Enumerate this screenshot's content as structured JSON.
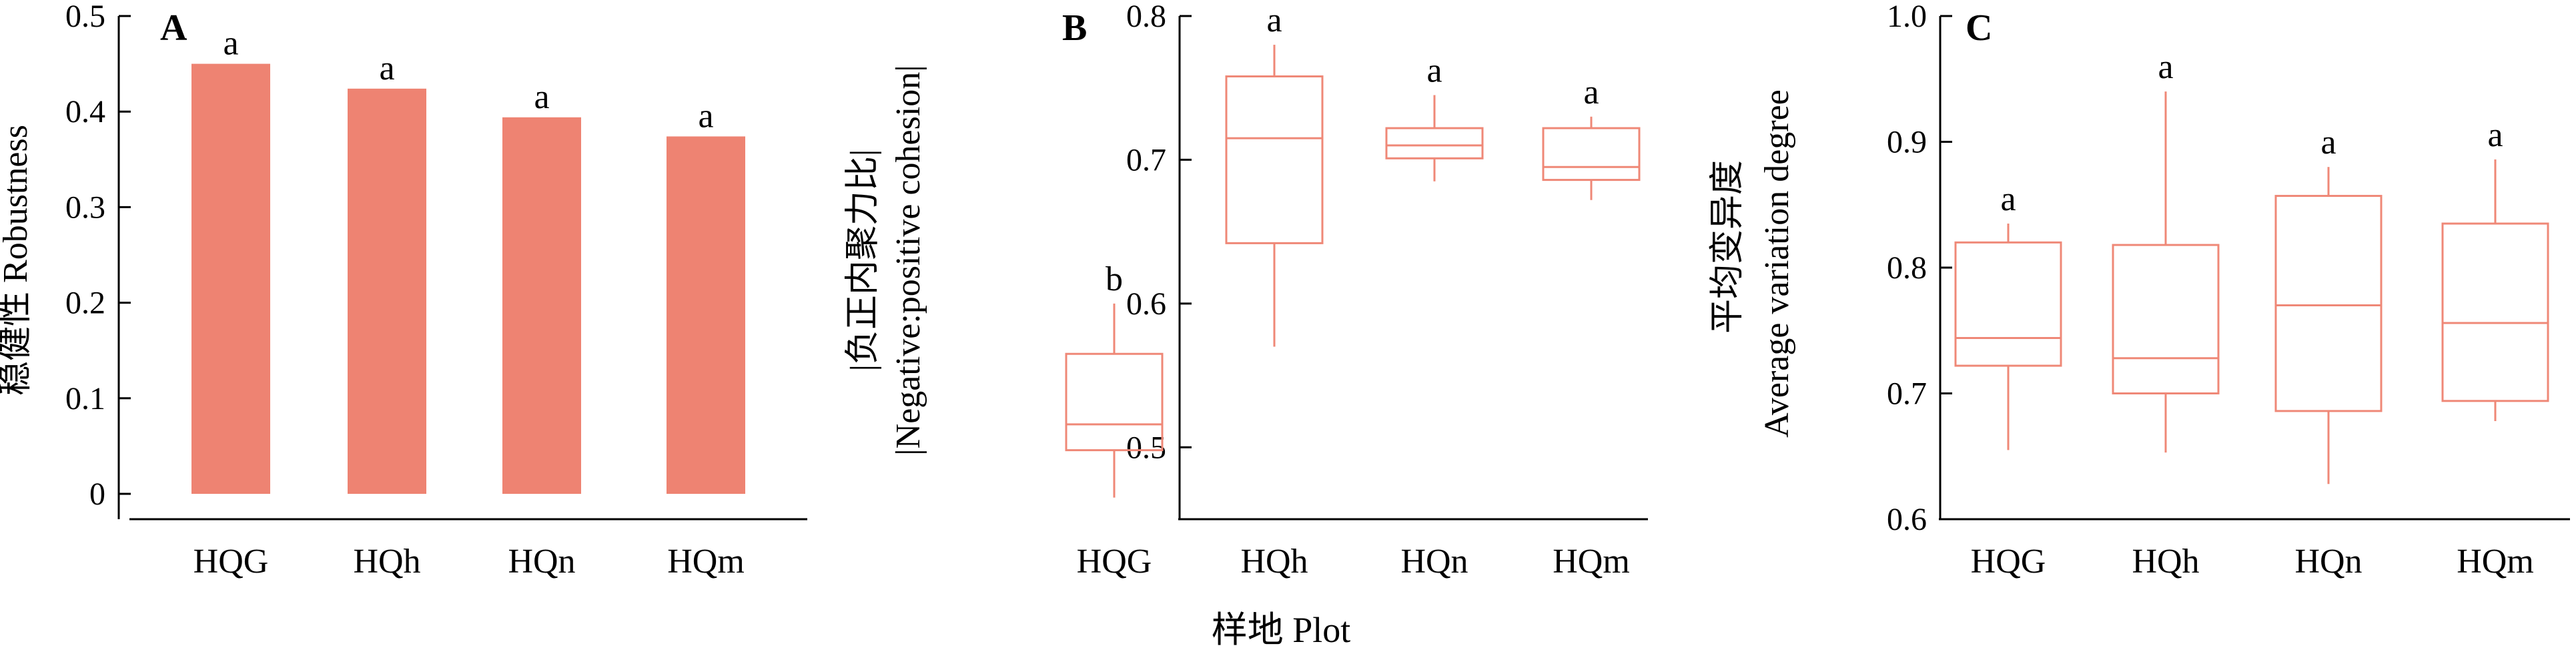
{
  "colors": {
    "bar": "#ee8372",
    "box": "#ef8877",
    "axis": "#000000"
  },
  "x_axis_title": "样地 Plot",
  "chart_data": [
    {
      "type": "bar",
      "panel": "A",
      "ylabel": "稳健性 Robustness",
      "ylim": [
        0,
        0.5
      ],
      "yticks": [
        0,
        0.1,
        0.2,
        0.3,
        0.4,
        0.5
      ],
      "ytick_labels": [
        "0",
        "0.1",
        "0.2",
        "0.3",
        "0.4",
        "0.5"
      ],
      "categories": [
        "HQG",
        "HQh",
        "HQn",
        "HQm"
      ],
      "values": [
        0.45,
        0.424,
        0.394,
        0.374
      ],
      "significance": [
        "a",
        "a",
        "a",
        "a"
      ]
    },
    {
      "type": "box",
      "panel": "B",
      "ylabel": "|负正内聚力比|",
      "ylabel2": "|Negative:positive cohesion|",
      "ylim": [
        0.45,
        0.8
      ],
      "yticks": [
        0.5,
        0.6,
        0.7,
        0.8
      ],
      "ytick_labels": [
        "0.5",
        "0.6",
        "0.7",
        "0.8"
      ],
      "categories": [
        "HQG",
        "HQh",
        "HQn",
        "HQm"
      ],
      "boxes": [
        {
          "min": 0.465,
          "q1": 0.498,
          "median": 0.516,
          "q3": 0.565,
          "max": 0.6
        },
        {
          "min": 0.57,
          "q1": 0.642,
          "median": 0.715,
          "q3": 0.758,
          "max": 0.78
        },
        {
          "min": 0.685,
          "q1": 0.701,
          "median": 0.71,
          "q3": 0.722,
          "max": 0.745
        },
        {
          "min": 0.672,
          "q1": 0.686,
          "median": 0.695,
          "q3": 0.722,
          "max": 0.73
        }
      ],
      "significance": [
        "b",
        "a",
        "a",
        "a"
      ]
    },
    {
      "type": "box",
      "panel": "C",
      "ylabel": "平均变异度",
      "ylabel2": "Average variation degree",
      "ylim": [
        0.6,
        1.0
      ],
      "yticks": [
        0.6,
        0.7,
        0.8,
        0.9,
        1.0
      ],
      "ytick_labels": [
        "0.6",
        "0.7",
        "0.8",
        "0.9",
        "1.0"
      ],
      "categories": [
        "HQG",
        "HQh",
        "HQn",
        "HQm"
      ],
      "boxes": [
        {
          "min": 0.655,
          "q1": 0.722,
          "median": 0.744,
          "q3": 0.82,
          "max": 0.835
        },
        {
          "min": 0.653,
          "q1": 0.7,
          "median": 0.728,
          "q3": 0.818,
          "max": 0.94
        },
        {
          "min": 0.628,
          "q1": 0.686,
          "median": 0.77,
          "q3": 0.857,
          "max": 0.88
        },
        {
          "min": 0.678,
          "q1": 0.694,
          "median": 0.756,
          "q3": 0.835,
          "max": 0.886
        }
      ],
      "significance": [
        "a",
        "a",
        "a",
        "a"
      ]
    }
  ]
}
